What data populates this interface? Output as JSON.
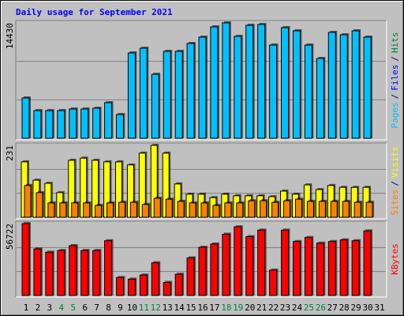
{
  "chart_data": [
    {
      "type": "bar",
      "title": "Daily usage for September 2021",
      "ylim": [
        0,
        14430
      ],
      "yticks": [
        14430
      ],
      "ylabel": [
        {
          "text": "Pages",
          "color": "#00C0FF"
        },
        {
          "text": "/",
          "color": "#000080"
        },
        {
          "text": "Files",
          "color": "#0000FF"
        },
        {
          "text": "/",
          "color": "#000080"
        },
        {
          "text": "Hits",
          "color": "#008040"
        }
      ],
      "series": [
        {
          "color": "#00C0FF",
          "values": [
            5040,
            3459,
            3459,
            3459,
            3657,
            3657,
            3756,
            4448,
            2965,
            10674,
            11267,
            8006,
            10872,
            10872,
            11860,
            12651,
            13936,
            14430,
            12750,
            14134,
            14232,
            11662,
            13837,
            13442,
            11662,
            9982,
            13244,
            12947,
            13442,
            12651,
            null
          ]
        }
      ]
    },
    {
      "type": "bar",
      "ylim": [
        0,
        231
      ],
      "yticks": [
        231
      ],
      "ylabel": [
        {
          "text": "Sites",
          "color": "#FF8000"
        },
        {
          "text": "/",
          "color": "#000080"
        },
        {
          "text": "Visits",
          "color": "#FFFF00"
        }
      ],
      "series": [
        {
          "color": "#FFFF00",
          "values": [
            178,
            119,
            109,
            79,
            183,
            190,
            183,
            178,
            178,
            168,
            206,
            231,
            206,
            107,
            74,
            74,
            63,
            74,
            69,
            69,
            69,
            66,
            84,
            74,
            104,
            89,
            102,
            96,
            96,
            96,
            null
          ]
        },
        {
          "color": "#FF8000",
          "values": [
            102,
            79,
            46,
            46,
            46,
            46,
            38,
            46,
            48,
            48,
            41,
            61,
            58,
            51,
            46,
            46,
            38,
            46,
            46,
            53,
            53,
            48,
            53,
            58,
            51,
            51,
            51,
            51,
            48,
            48,
            null
          ]
        }
      ]
    },
    {
      "type": "bar",
      "ylim": [
        0,
        56722
      ],
      "yticks": [
        56722
      ],
      "ylabel": [
        {
          "text": "KBytes",
          "color": "#FF0000"
        }
      ],
      "series": [
        {
          "color": "#FF0000",
          "values": [
            56722,
            36740,
            34162,
            35451,
            39318,
            35451,
            35451,
            43185,
            14180,
            12891,
            16114,
            25783,
            10313,
            16759,
            29650,
            38030,
            40608,
            48342,
            54144,
            46408,
            51565,
            19981,
            51565,
            42542,
            45764,
            41252,
            42542,
            43830,
            43185,
            50920,
            null
          ]
        }
      ],
      "categories": [
        "1",
        "2",
        "3",
        "4",
        "5",
        "6",
        "7",
        "8",
        "9",
        "10",
        "11",
        "12",
        "13",
        "14",
        "15",
        "16",
        "17",
        "18",
        "19",
        "20",
        "21",
        "22",
        "23",
        "24",
        "25",
        "26",
        "27",
        "28",
        "29",
        "30",
        "31"
      ],
      "category_colors": [
        "#000000",
        "#000000",
        "#000000",
        "#008040",
        "#008040",
        "#000000",
        "#000000",
        "#000000",
        "#000000",
        "#000000",
        "#008040",
        "#008040",
        "#000000",
        "#000000",
        "#000000",
        "#000000",
        "#000000",
        "#008040",
        "#008040",
        "#000000",
        "#000000",
        "#000000",
        "#000000",
        "#000000",
        "#008040",
        "#008040",
        "#000000",
        "#000000",
        "#000000",
        "#000000",
        "#000000"
      ]
    }
  ]
}
